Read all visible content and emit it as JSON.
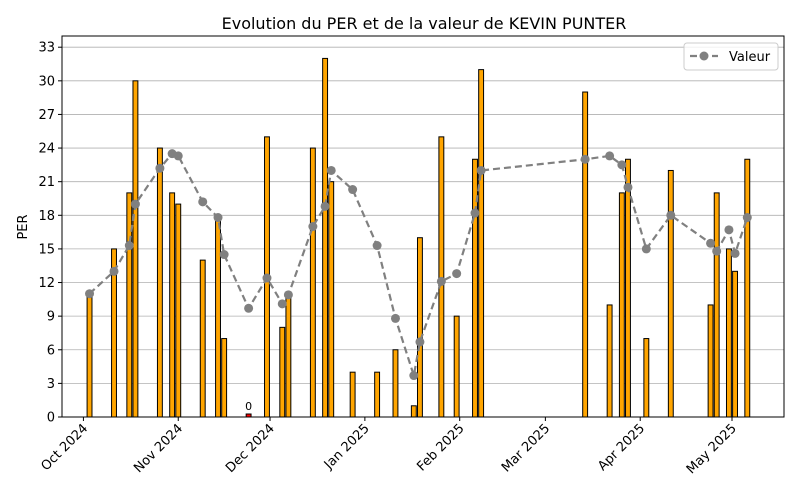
{
  "chart_data": {
    "type": "bar",
    "title": "Evolution du PER et de la valeur de KEVIN PUNTER",
    "xlabel": "",
    "ylabel": "PER",
    "ylim": [
      0,
      34
    ],
    "y_ticks": [
      0,
      3,
      6,
      9,
      12,
      15,
      18,
      21,
      24,
      27,
      30,
      33
    ],
    "x_range": [
      "2024-09-24",
      "2025-05-18"
    ],
    "x_ticks": [
      {
        "date": "2024-10-01",
        "label": "Oct 2024"
      },
      {
        "date": "2024-11-01",
        "label": "Nov 2024"
      },
      {
        "date": "2024-12-01",
        "label": "Dec 2024"
      },
      {
        "date": "2025-01-01",
        "label": "Jan 2025"
      },
      {
        "date": "2025-02-01",
        "label": "Feb 2025"
      },
      {
        "date": "2025-03-01",
        "label": "Mar 2025"
      },
      {
        "date": "2025-04-01",
        "label": "Apr 2025"
      },
      {
        "date": "2025-05-01",
        "label": "May 2025"
      }
    ],
    "grid": "y",
    "legend": {
      "position": "top-right",
      "entries": [
        "Valeur"
      ]
    },
    "colors": {
      "bar": "#FFA500",
      "bar_edge": "#000000",
      "line": "#808080",
      "zero_bar": "#FF0000"
    },
    "bars": [
      {
        "date": "2024-10-03",
        "value": 11
      },
      {
        "date": "2024-10-11",
        "value": 15
      },
      {
        "date": "2024-10-16",
        "value": 20
      },
      {
        "date": "2024-10-18",
        "value": 30
      },
      {
        "date": "2024-10-26",
        "value": 24
      },
      {
        "date": "2024-10-30",
        "value": 20
      },
      {
        "date": "2024-11-01",
        "value": 19
      },
      {
        "date": "2024-11-09",
        "value": 14
      },
      {
        "date": "2024-11-14",
        "value": 18
      },
      {
        "date": "2024-11-16",
        "value": 7
      },
      {
        "date": "2024-11-24",
        "value": 0,
        "label": "0"
      },
      {
        "date": "2024-11-30",
        "value": 25
      },
      {
        "date": "2024-12-05",
        "value": 8
      },
      {
        "date": "2024-12-07",
        "value": 11
      },
      {
        "date": "2024-12-15",
        "value": 24
      },
      {
        "date": "2024-12-19",
        "value": 32
      },
      {
        "date": "2024-12-21",
        "value": 21
      },
      {
        "date": "2024-12-28",
        "value": 4
      },
      {
        "date": "2025-01-05",
        "value": 4
      },
      {
        "date": "2025-01-11",
        "value": 6
      },
      {
        "date": "2025-01-17",
        "value": 1
      },
      {
        "date": "2025-01-19",
        "value": 16
      },
      {
        "date": "2025-01-26",
        "value": 25
      },
      {
        "date": "2025-01-31",
        "value": 9
      },
      {
        "date": "2025-02-06",
        "value": 23
      },
      {
        "date": "2025-02-08",
        "value": 31
      },
      {
        "date": "2025-03-14",
        "value": 29
      },
      {
        "date": "2025-03-22",
        "value": 10
      },
      {
        "date": "2025-03-26",
        "value": 20
      },
      {
        "date": "2025-03-28",
        "value": 23
      },
      {
        "date": "2025-04-03",
        "value": 7
      },
      {
        "date": "2025-04-11",
        "value": 22
      },
      {
        "date": "2025-04-24",
        "value": 10
      },
      {
        "date": "2025-04-26",
        "value": 20
      },
      {
        "date": "2025-04-30",
        "value": 15
      },
      {
        "date": "2025-05-02",
        "value": 13
      },
      {
        "date": "2025-05-06",
        "value": 23
      }
    ],
    "series": [
      {
        "name": "Valeur",
        "type": "line",
        "style": "dashed",
        "marker": "circle",
        "points": [
          {
            "date": "2024-10-03",
            "value": 11.0
          },
          {
            "date": "2024-10-11",
            "value": 13.0
          },
          {
            "date": "2024-10-16",
            "value": 15.3
          },
          {
            "date": "2024-10-18",
            "value": 19.0
          },
          {
            "date": "2024-10-26",
            "value": 22.2
          },
          {
            "date": "2024-10-30",
            "value": 23.5
          },
          {
            "date": "2024-11-01",
            "value": 23.3
          },
          {
            "date": "2024-11-09",
            "value": 19.2
          },
          {
            "date": "2024-11-14",
            "value": 17.8
          },
          {
            "date": "2024-11-16",
            "value": 14.5
          },
          {
            "date": "2024-11-24",
            "value": 9.7
          },
          {
            "date": "2024-11-30",
            "value": 12.4
          },
          {
            "date": "2024-12-05",
            "value": 10.1
          },
          {
            "date": "2024-12-07",
            "value": 10.9
          },
          {
            "date": "2024-12-15",
            "value": 17.0
          },
          {
            "date": "2024-12-19",
            "value": 18.8
          },
          {
            "date": "2024-12-21",
            "value": 22.0
          },
          {
            "date": "2024-12-28",
            "value": 20.3
          },
          {
            "date": "2025-01-05",
            "value": 15.3
          },
          {
            "date": "2025-01-11",
            "value": 8.8
          },
          {
            "date": "2025-01-17",
            "value": 3.7
          },
          {
            "date": "2025-01-19",
            "value": 6.7
          },
          {
            "date": "2025-01-26",
            "value": 12.1
          },
          {
            "date": "2025-01-31",
            "value": 12.8
          },
          {
            "date": "2025-02-06",
            "value": 18.2
          },
          {
            "date": "2025-02-08",
            "value": 22.0
          },
          {
            "date": "2025-03-14",
            "value": 23.0
          },
          {
            "date": "2025-03-22",
            "value": 23.3
          },
          {
            "date": "2025-03-26",
            "value": 22.5
          },
          {
            "date": "2025-03-28",
            "value": 20.5
          },
          {
            "date": "2025-04-03",
            "value": 15.0
          },
          {
            "date": "2025-04-11",
            "value": 18.0
          },
          {
            "date": "2025-04-24",
            "value": 15.5
          },
          {
            "date": "2025-04-26",
            "value": 14.8
          },
          {
            "date": "2025-04-30",
            "value": 16.7
          },
          {
            "date": "2025-05-02",
            "value": 14.6
          },
          {
            "date": "2025-05-06",
            "value": 17.8
          }
        ]
      }
    ]
  }
}
